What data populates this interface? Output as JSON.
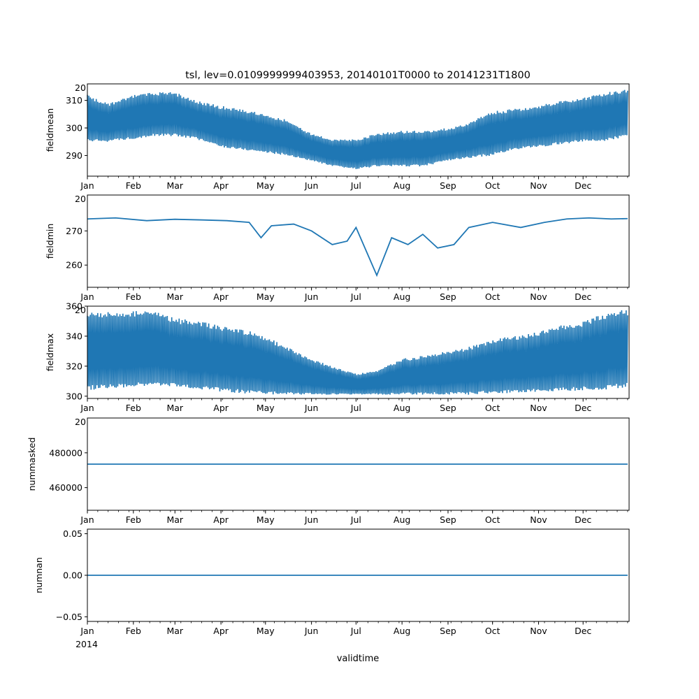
{
  "figure": {
    "title": "tsl, lev=0.0109999999403953, 20140101T0000 to 20141231T1800",
    "xlabel": "validtime",
    "year_label": "2014",
    "offset_text": "20"
  },
  "months": [
    "Jan",
    "Feb",
    "Mar",
    "Apr",
    "May",
    "Jun",
    "Jul",
    "Aug",
    "Sep",
    "Oct",
    "Nov",
    "Dec"
  ],
  "chart_data": [
    {
      "type": "line",
      "name": "fieldmean",
      "ylabel": "fieldmean",
      "ylim": [
        282.5,
        316
      ],
      "yticks": [
        290,
        300,
        310
      ],
      "ytick_labels": [
        "290",
        "300",
        "310"
      ],
      "color": "#1f77b4",
      "x": [
        "2014-01-01",
        "2014-01-15",
        "2014-02-01",
        "2014-02-15",
        "2014-03-01",
        "2014-03-15",
        "2014-04-01",
        "2014-04-15",
        "2014-05-01",
        "2014-05-15",
        "2014-06-01",
        "2014-06-15",
        "2014-07-01",
        "2014-07-15",
        "2014-08-01",
        "2014-08-15",
        "2014-09-01",
        "2014-09-15",
        "2014-10-01",
        "2014-10-15",
        "2014-11-01",
        "2014-11-15",
        "2014-12-01",
        "2014-12-15",
        "2014-12-31"
      ],
      "y_min": [
        295,
        295,
        296,
        297,
        297,
        296,
        293,
        292,
        291,
        290,
        288,
        286,
        285,
        286,
        286,
        286,
        288,
        289,
        290,
        292,
        293,
        294,
        295,
        295,
        297
      ],
      "y_max": [
        312,
        309,
        312,
        313,
        313,
        310,
        308,
        307,
        305,
        303,
        298,
        296,
        296,
        298,
        299,
        299,
        300,
        302,
        306,
        307,
        308,
        310,
        311,
        313,
        314
      ]
    },
    {
      "type": "line",
      "name": "fieldmin",
      "ylabel": "fieldmin",
      "ylim": [
        253.5,
        280.5
      ],
      "yticks": [
        260,
        270
      ],
      "ytick_labels": [
        "260",
        "270"
      ],
      "color": "#1f77b4",
      "x": [
        "2014-01-01",
        "2014-01-20",
        "2014-02-10",
        "2014-03-01",
        "2014-03-20",
        "2014-04-05",
        "2014-04-20",
        "2014-04-28",
        "2014-05-05",
        "2014-05-20",
        "2014-06-01",
        "2014-06-15",
        "2014-06-25",
        "2014-07-01",
        "2014-07-08",
        "2014-07-15",
        "2014-07-25",
        "2014-08-05",
        "2014-08-15",
        "2014-08-25",
        "2014-09-05",
        "2014-09-15",
        "2014-10-01",
        "2014-10-20",
        "2014-11-05",
        "2014-11-20",
        "2014-12-05",
        "2014-12-20",
        "2014-12-31"
      ],
      "y": [
        273.5,
        273.8,
        273.0,
        273.4,
        273.2,
        273.0,
        272.5,
        268.0,
        271.5,
        272.0,
        270.0,
        266.0,
        267.0,
        271.0,
        264.0,
        257.0,
        268.0,
        266.0,
        269.0,
        265.0,
        266.0,
        271.0,
        272.5,
        271.0,
        272.5,
        273.5,
        273.8,
        273.5,
        273.6
      ]
    },
    {
      "type": "line",
      "name": "fieldmax",
      "ylabel": "fieldmax",
      "ylim": [
        298.5,
        360
      ],
      "yticks": [
        300,
        320,
        340,
        360
      ],
      "ytick_labels": [
        "300",
        "320",
        "340",
        "360"
      ],
      "color": "#1f77b4",
      "x": [
        "2014-01-01",
        "2014-01-15",
        "2014-02-01",
        "2014-02-15",
        "2014-03-01",
        "2014-03-15",
        "2014-04-01",
        "2014-04-15",
        "2014-05-01",
        "2014-05-15",
        "2014-06-01",
        "2014-06-15",
        "2014-07-01",
        "2014-07-15",
        "2014-08-01",
        "2014-08-15",
        "2014-09-01",
        "2014-09-15",
        "2014-10-01",
        "2014-10-15",
        "2014-11-01",
        "2014-11-15",
        "2014-12-01",
        "2014-12-15",
        "2014-12-31"
      ],
      "y_min": [
        304,
        305,
        306,
        307,
        306,
        305,
        303,
        302,
        301,
        301,
        301,
        301,
        301,
        301,
        301,
        301,
        301,
        301,
        302,
        302,
        303,
        303,
        304,
        304,
        306
      ],
      "y_max": [
        357,
        356,
        357,
        357,
        352,
        351,
        347,
        345,
        340,
        333,
        325,
        320,
        315,
        317,
        325,
        327,
        330,
        333,
        338,
        340,
        343,
        347,
        350,
        355,
        358
      ]
    },
    {
      "type": "line",
      "name": "nummasked",
      "ylabel": "nummasked",
      "ylim": [
        447000,
        500000
      ],
      "yticks": [
        460000,
        480000
      ],
      "ytick_labels": [
        "460000",
        "480000"
      ],
      "color": "#1f77b4",
      "x": [
        "2014-01-01",
        "2014-12-31"
      ],
      "y": [
        473500,
        473500
      ]
    },
    {
      "type": "line",
      "name": "numnan",
      "ylabel": "numnan",
      "ylim": [
        -0.0555,
        0.0555
      ],
      "yticks": [
        -0.05,
        0.0,
        0.05
      ],
      "ytick_labels": [
        "−0.05",
        "0.00",
        "0.05"
      ],
      "color": "#1f77b4",
      "x": [
        "2014-01-01",
        "2014-12-31"
      ],
      "y": [
        0.0,
        0.0
      ]
    }
  ]
}
